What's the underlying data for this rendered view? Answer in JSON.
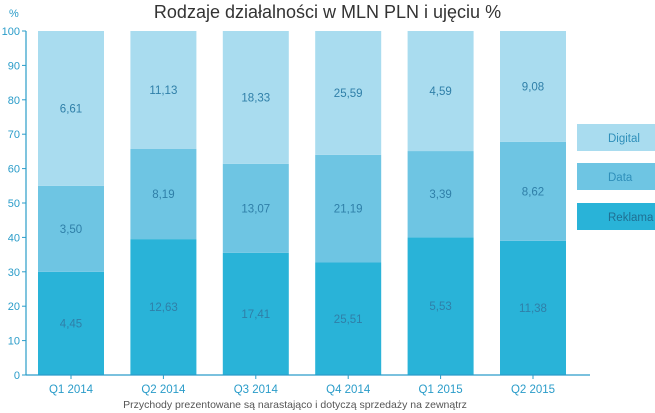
{
  "chart_data": {
    "type": "bar",
    "stacked": true,
    "title": "Rodzaje działalności w MLN PLN i ujęciu %",
    "ylabel": "%",
    "ylim": [
      0,
      100
    ],
    "yticks": [
      0,
      10,
      20,
      30,
      40,
      50,
      60,
      70,
      80,
      90,
      100
    ],
    "categories": [
      "Q1 2014",
      "Q2 2014",
      "Q3 2014",
      "Q4 2014",
      "Q1 2015",
      "Q2 2015"
    ],
    "series": [
      {
        "name": "Reklama",
        "color": "#29b3d8",
        "percent": [
          30,
          39.5,
          35.5,
          32.7,
          40,
          39
        ],
        "labels": [
          "4,45",
          "12,63",
          "17,41",
          "25,51",
          "5,53",
          "11,38"
        ]
      },
      {
        "name": "Data",
        "color": "#6ec5e3",
        "percent": [
          25,
          26.2,
          25.9,
          31.3,
          25.1,
          28.8
        ],
        "labels": [
          "3,50",
          "8,19",
          "13,07",
          "21,19",
          "3,39",
          "8,62"
        ]
      },
      {
        "name": "Digital",
        "color": "#a9dcef",
        "percent": [
          45,
          34.3,
          38.6,
          36,
          34.9,
          32.2
        ],
        "labels": [
          "6,61",
          "11,13",
          "18,33",
          "25,59",
          "4,59",
          "9,08"
        ]
      }
    ],
    "legend": [
      "Digital",
      "Data",
      "Reklama"
    ],
    "legend_position": "right",
    "footnote": "Przychody prezentowane są narastająco i dotyczą sprzedaży na zewnątrz",
    "colors": {
      "axis": "#2a9cc9",
      "value_label": "#2f7fa8",
      "title": "#333333"
    }
  }
}
